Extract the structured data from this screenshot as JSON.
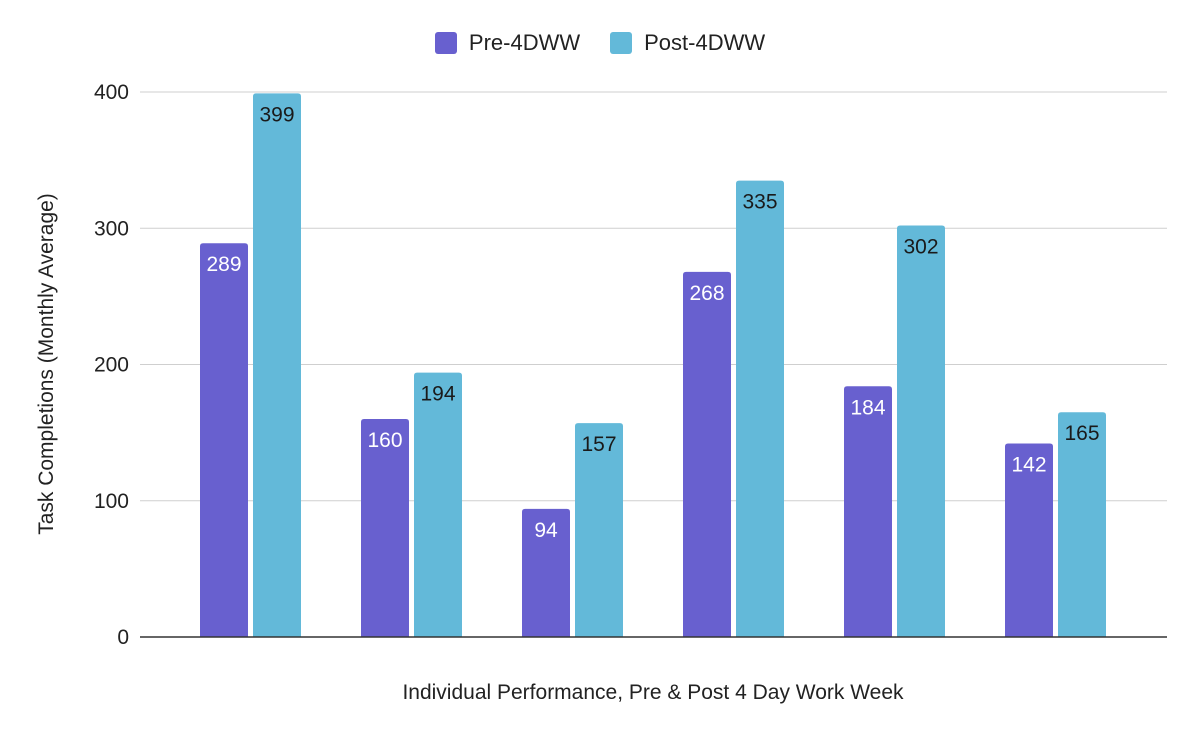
{
  "chart_data": {
    "type": "bar",
    "categories": [
      "",
      "",
      "",
      "",
      "",
      ""
    ],
    "series": [
      {
        "name": "Pre-4DWW",
        "color": "#6860cf",
        "values": [
          289,
          160,
          94,
          268,
          184,
          142
        ]
      },
      {
        "name": "Post-4DWW",
        "color": "#63b9d9",
        "values": [
          399,
          194,
          157,
          335,
          302,
          165
        ]
      }
    ],
    "xlabel": "Individual Performance, Pre & Post 4 Day Work Week",
    "ylabel": "Task Completions (Monthly Average)",
    "ylim": [
      0,
      400
    ],
    "yticks": [
      0,
      100,
      200,
      300,
      400
    ],
    "grid": true,
    "legend_position": "top-center",
    "colors": {
      "gridline": "#cfcfcf",
      "axis": "#333333",
      "label_on_dark": "#ffffff",
      "label_on_light": "#1a1a1a"
    }
  }
}
